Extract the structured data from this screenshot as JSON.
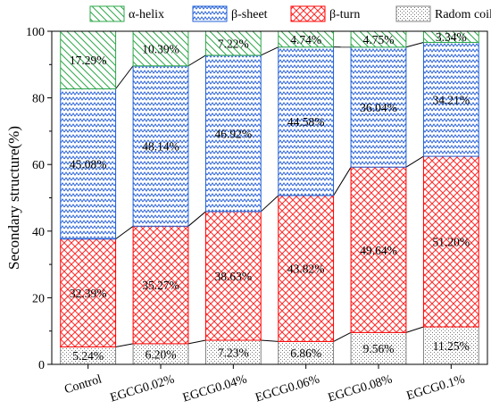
{
  "chart_data": {
    "type": "bar",
    "stacked": true,
    "categories": [
      "Control",
      "EGCG0.02%",
      "EGCG0.04%",
      "EGCG0.06%",
      "EGCG0.08%",
      "EGCG0.1%"
    ],
    "series": [
      {
        "name": "Radom coil",
        "values": [
          5.24,
          6.2,
          7.23,
          6.86,
          9.56,
          11.25
        ],
        "labels": [
          "5.24%",
          "6.20%",
          "7.23%",
          "6.86%",
          "9.56%",
          "11.25%"
        ],
        "color": "#808080",
        "pattern": "dots"
      },
      {
        "name": "β-turn",
        "values": [
          32.39,
          35.27,
          38.63,
          43.82,
          49.64,
          51.2
        ],
        "labels": [
          "32.39%",
          "35.27%",
          "38.63%",
          "43.82%",
          "49.64%",
          "51.20%"
        ],
        "color": "#ff0000",
        "pattern": "crosshatch"
      },
      {
        "name": "β-sheet",
        "values": [
          45.08,
          48.14,
          46.92,
          44.58,
          36.04,
          34.21
        ],
        "labels": [
          "45.08%",
          "48.14%",
          "46.92%",
          "44.58%",
          "36.04%",
          "34.21%"
        ],
        "color": "#1f5fd6",
        "pattern": "zigzag"
      },
      {
        "name": "α-helix",
        "values": [
          17.29,
          10.39,
          7.22,
          4.74,
          4.75,
          3.34
        ],
        "labels": [
          "17.29%",
          "10.39%",
          "7.22%",
          "4.74%",
          "4.75%",
          "3.34%"
        ],
        "color": "#2ea84a",
        "pattern": "diagonal"
      }
    ],
    "legend_order": [
      "α-helix",
      "β-sheet",
      "β-turn",
      "Radom coil"
    ],
    "legend_position": "top",
    "xlabel": "",
    "ylabel": "Secondary structure(%)",
    "ylim": [
      0,
      100
    ],
    "yticks": [
      "0",
      "20",
      "40",
      "60",
      "80",
      "100"
    ],
    "grid": false
  }
}
